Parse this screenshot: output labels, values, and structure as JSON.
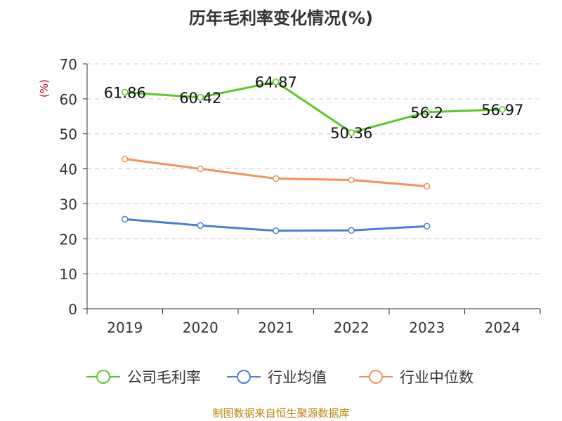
{
  "chart_data": {
    "type": "line",
    "title": "历年毛利率变化情况(%)",
    "ylabel": "(%)",
    "xlabel": "",
    "categories": [
      "2019",
      "2020",
      "2021",
      "2022",
      "2023",
      "2024"
    ],
    "ylim": [
      0,
      70
    ],
    "yticks": [
      0,
      10,
      20,
      30,
      40,
      50,
      60,
      70
    ],
    "grid": true,
    "legend_position": "bottom",
    "series": [
      {
        "name": "公司毛利率",
        "color": "#5cc72a",
        "values": [
          61.86,
          60.42,
          64.87,
          50.36,
          56.2,
          56.97
        ],
        "labels": [
          "61.86",
          "60.42",
          "64.87",
          "50.36",
          "56.2",
          "56.97"
        ]
      },
      {
        "name": "行业均值",
        "color": "#4a7fd6",
        "values": [
          25.6,
          23.8,
          22.3,
          22.4,
          23.6,
          null
        ]
      },
      {
        "name": "行业中位数",
        "color": "#f5905a",
        "values": [
          42.8,
          40.0,
          37.2,
          36.8,
          35.0,
          null
        ]
      }
    ]
  },
  "footer": {
    "source": "制图数据来自恒生聚源数据库"
  }
}
